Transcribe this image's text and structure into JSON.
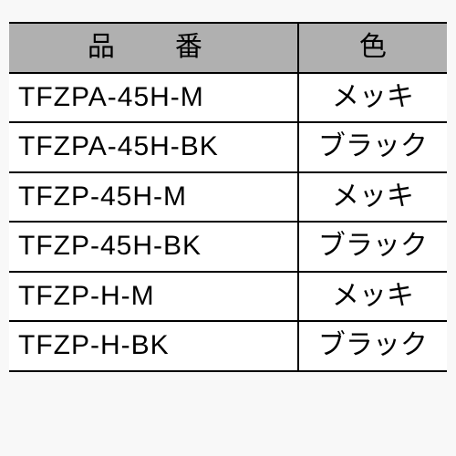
{
  "table": {
    "header_bg": "#b0b0b0",
    "border_color": "#000000",
    "columns": [
      {
        "label": "品　番"
      },
      {
        "label": "色"
      }
    ],
    "rows": [
      {
        "part": "TFZPA-45H-M",
        "color": "メッキ"
      },
      {
        "part": "TFZPA-45H-BK",
        "color": "ブラック"
      },
      {
        "part": "TFZP-45H-M",
        "color": "メッキ"
      },
      {
        "part": "TFZP-45H-BK",
        "color": "ブラック"
      },
      {
        "part": "TFZP-H-M",
        "color": "メッキ"
      },
      {
        "part": "TFZP-H-BK",
        "color": "ブラック"
      }
    ]
  }
}
